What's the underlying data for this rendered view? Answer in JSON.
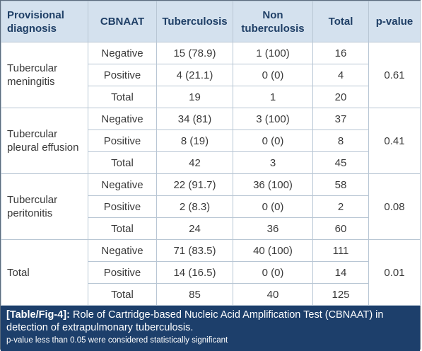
{
  "table": {
    "headers": {
      "provisional_diagnosis": "Provisional diagnosis",
      "cbnaat": "CBNAAT",
      "tuberculosis": "Tuberculosis",
      "non_tuberculosis": "Non tuberculosis",
      "total": "Total",
      "p_value": "p-value"
    },
    "groups": [
      {
        "diagnosis": "Tubercular meningitis",
        "p_value": "0.61",
        "rows": [
          {
            "cbnaat": "Negative",
            "tb": "15 (78.9)",
            "non_tb": "1 (100)",
            "total": "16"
          },
          {
            "cbnaat": "Positive",
            "tb": "4 (21.1)",
            "non_tb": "0 (0)",
            "total": "4"
          },
          {
            "cbnaat": "Total",
            "tb": "19",
            "non_tb": "1",
            "total": "20"
          }
        ]
      },
      {
        "diagnosis": "Tubercular pleural effusion",
        "p_value": "0.41",
        "rows": [
          {
            "cbnaat": "Negative",
            "tb": "34 (81)",
            "non_tb": "3 (100)",
            "total": "37"
          },
          {
            "cbnaat": "Positive",
            "tb": "8 (19)",
            "non_tb": "0 (0)",
            "total": "8"
          },
          {
            "cbnaat": "Total",
            "tb": "42",
            "non_tb": "3",
            "total": "45"
          }
        ]
      },
      {
        "diagnosis": "Tubercular peritonitis",
        "p_value": "0.08",
        "rows": [
          {
            "cbnaat": "Negative",
            "tb": "22 (91.7)",
            "non_tb": "36 (100)",
            "total": "58"
          },
          {
            "cbnaat": "Positive",
            "tb": "2 (8.3)",
            "non_tb": "0 (0)",
            "total": "2"
          },
          {
            "cbnaat": "Total",
            "tb": "24",
            "non_tb": "36",
            "total": "60"
          }
        ]
      },
      {
        "diagnosis": "Total",
        "p_value": "0.01",
        "rows": [
          {
            "cbnaat": "Negative",
            "tb": "71 (83.5)",
            "non_tb": "40 (100)",
            "total": "111"
          },
          {
            "cbnaat": "Positive",
            "tb": "14 (16.5)",
            "non_tb": "0 (0)",
            "total": "14"
          },
          {
            "cbnaat": "Total",
            "tb": "85",
            "non_tb": "40",
            "total": "125"
          }
        ]
      }
    ]
  },
  "caption": {
    "label": "[Table/Fig-4]:",
    "text": " Role of Cartridge-based Nucleic Acid Amplification Test (CBNAAT) in detection of extrapulmonary tuberculosis.",
    "note": "p-value less than 0.05 were considered statistically significant"
  },
  "colors": {
    "header_bg": "#d4e1ee",
    "header_text": "#1f3f66",
    "caption_bg": "#1d3f6b",
    "grid": "#b8c6d4"
  }
}
